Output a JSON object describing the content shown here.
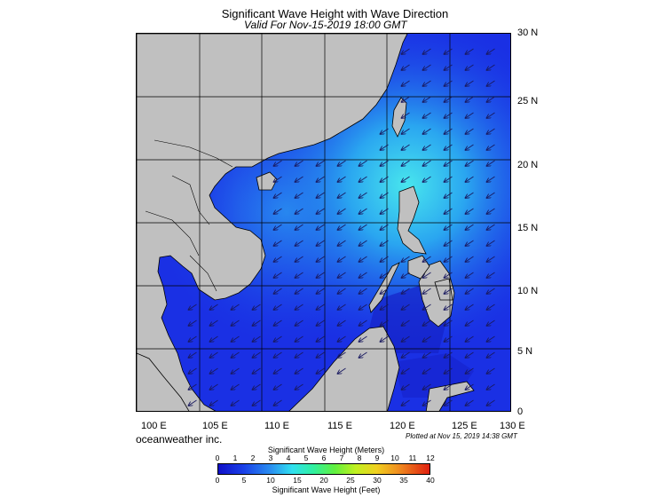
{
  "title": "Significant Wave Height with Wave Direction",
  "subtitle": "Valid For Nov-15-2019 18:00 GMT",
  "brand": "oceanweather inc.",
  "plotted": "Plotted at Nov 15, 2019 14:38 GMT",
  "lat_labels": [
    "30 N",
    "25 N",
    "20 N",
    "15 N",
    "10 N",
    "5 N",
    "0"
  ],
  "lon_labels": [
    "100 E",
    "105 E",
    "110 E",
    "115 E",
    "120 E",
    "125 E",
    "130 E"
  ],
  "colorbar": {
    "title_meters": "Significant Wave Height (Meters)",
    "title_feet": "Significant Wave Height (Feet)",
    "meter_ticks": [
      "0",
      "1",
      "2",
      "3",
      "4",
      "5",
      "6",
      "7",
      "8",
      "9",
      "10",
      "11",
      "12"
    ],
    "feet_ticks": [
      "0",
      "5",
      "10",
      "15",
      "20",
      "25",
      "30",
      "35",
      "40"
    ]
  },
  "colors": {
    "land": "#c0c0c0",
    "sea_low": "#1a2fe6",
    "sea_mid": "#1f6fef",
    "sea_high": "#40d8f0",
    "grid": "#000000"
  }
}
